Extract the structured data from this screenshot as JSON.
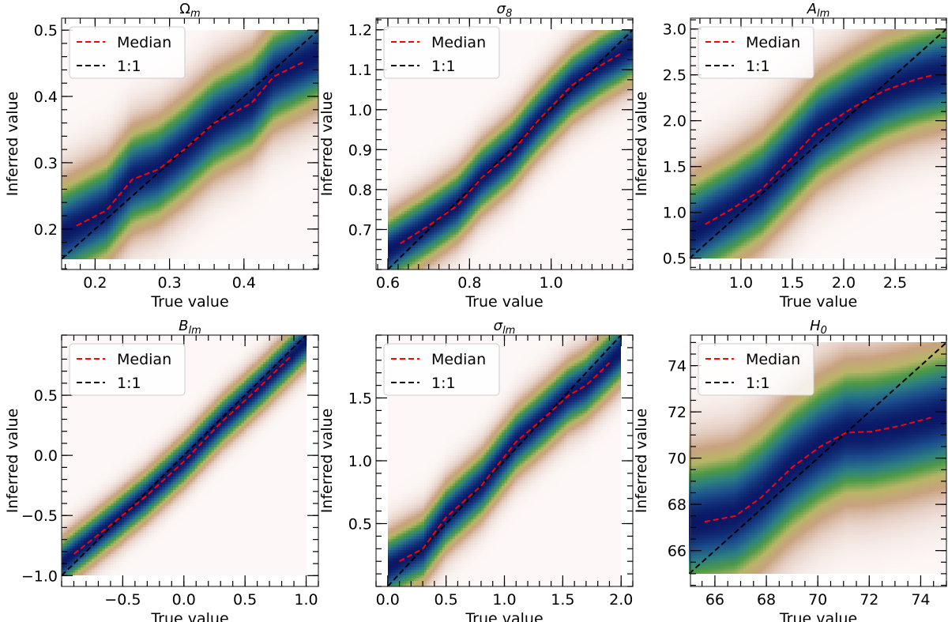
{
  "chart_data": [
    {
      "type": "heatmap",
      "title": {
        "main": "Ω",
        "sub": "m",
        "italic": false
      },
      "xlabel": "True value",
      "ylabel": "Inferred value",
      "xlim": [
        0.155,
        0.5
      ],
      "ylim": [
        0.139,
        0.518
      ],
      "data_range": [
        0.155,
        0.5
      ],
      "xticks": [
        0.2,
        0.3,
        0.4
      ],
      "xtick_labels": [
        "0.2",
        "0.3",
        "0.4"
      ],
      "yticks": [
        0.2,
        0.3,
        0.4,
        0.5
      ],
      "ytick_labels": [
        "0.2",
        "0.3",
        "0.4",
        "0.5"
      ],
      "series": [
        {
          "name": "Median",
          "color": "#ff0000",
          "style": "dashed",
          "x": [
            0.175,
            0.215,
            0.25,
            0.285,
            0.32,
            0.36,
            0.41,
            0.44,
            0.48
          ],
          "y": [
            0.205,
            0.228,
            0.275,
            0.29,
            0.32,
            0.36,
            0.39,
            0.43,
            0.452
          ]
        },
        {
          "name": "1:1",
          "color": "#000000",
          "style": "dashed",
          "x": [
            0.155,
            0.5
          ],
          "y": [
            0.155,
            0.5
          ]
        }
      ]
    },
    {
      "type": "heatmap",
      "title": {
        "main": "σ",
        "sub": "8",
        "italic": true
      },
      "xlabel": "True value",
      "ylabel": "Inferred value",
      "xlim": [
        0.571,
        1.2
      ],
      "ylim": [
        0.6,
        1.229
      ],
      "data_range": [
        0.6,
        1.2
      ],
      "xticks": [
        0.6,
        0.8,
        1.0
      ],
      "xtick_labels": [
        "0.6",
        "0.8",
        "1.0"
      ],
      "yticks": [
        0.7,
        0.8,
        0.9,
        1.0,
        1.1,
        1.2
      ],
      "ytick_labels": [
        "0.7",
        "0.8",
        "0.9",
        "1.0",
        "1.1",
        "1.2"
      ],
      "series": [
        {
          "name": "Median",
          "color": "#ff0000",
          "style": "dashed",
          "x": [
            0.63,
            0.7,
            0.77,
            0.83,
            0.9,
            0.97,
            1.05,
            1.12,
            1.17
          ],
          "y": [
            0.665,
            0.71,
            0.76,
            0.83,
            0.89,
            0.975,
            1.06,
            1.11,
            1.14
          ]
        },
        {
          "name": "1:1",
          "color": "#000000",
          "style": "dashed",
          "x": [
            0.6,
            1.2
          ],
          "y": [
            0.6,
            1.2
          ]
        }
      ]
    },
    {
      "type": "heatmap",
      "title": {
        "main": "A",
        "sub": "lm",
        "italic": true
      },
      "xlabel": "True value",
      "ylabel": "Inferred value",
      "xlim": [
        0.508,
        3.0
      ],
      "ylim": [
        0.377,
        3.118
      ],
      "data_range": [
        0.5,
        3.0
      ],
      "xticks": [
        1.0,
        1.5,
        2.0,
        2.5
      ],
      "xtick_labels": [
        "1.0",
        "1.5",
        "2.0",
        "2.5"
      ],
      "yticks": [
        0.5,
        1.0,
        1.5,
        2.0,
        2.5,
        3.0
      ],
      "ytick_labels": [
        "0.5",
        "1.0",
        "1.5",
        "2.0",
        "2.5",
        "3.0"
      ],
      "series": [
        {
          "name": "Median",
          "color": "#ff0000",
          "style": "dashed",
          "x": [
            0.65,
            0.9,
            1.2,
            1.5,
            1.75,
            2.1,
            2.4,
            2.7,
            2.88
          ],
          "y": [
            0.87,
            1.03,
            1.25,
            1.6,
            1.9,
            2.15,
            2.33,
            2.45,
            2.5
          ]
        },
        {
          "name": "1:1",
          "color": "#000000",
          "style": "dashed",
          "x": [
            0.5,
            3.0
          ],
          "y": [
            0.5,
            3.0
          ]
        }
      ]
    },
    {
      "type": "heatmap",
      "title": {
        "main": "B",
        "sub": "lm",
        "italic": true
      },
      "xlabel": "True value",
      "ylabel": "Inferred value",
      "xlim": [
        -1.0,
        1.1
      ],
      "ylim": [
        -1.09,
        1.0
      ],
      "data_range": [
        -1.0,
        1.0
      ],
      "xticks": [
        -0.5,
        0.0,
        0.5,
        1.0
      ],
      "xtick_labels": [
        "−0.5",
        "0.0",
        "0.5",
        "1.0"
      ],
      "yticks": [
        -1.0,
        -0.5,
        0.0,
        0.5
      ],
      "ytick_labels": [
        "−1.0",
        "−0.5",
        "0.0",
        "0.5"
      ],
      "series": [
        {
          "name": "Median",
          "color": "#ff0000",
          "style": "dashed",
          "x": [
            -0.9,
            -0.6,
            -0.3,
            0.0,
            0.3,
            0.6,
            0.87
          ],
          "y": [
            -0.82,
            -0.58,
            -0.33,
            -0.05,
            0.27,
            0.55,
            0.82
          ]
        },
        {
          "name": "1:1",
          "color": "#000000",
          "style": "dashed",
          "x": [
            -1.0,
            1.0
          ],
          "y": [
            -1.0,
            1.0
          ]
        }
      ]
    },
    {
      "type": "heatmap",
      "title": {
        "main": "σ",
        "sub": "lm",
        "italic": true
      },
      "xlabel": "True value",
      "ylabel": "Inferred value",
      "xlim": [
        -0.1,
        2.1
      ],
      "ylim": [
        0.0,
        2.0
      ],
      "data_range": [
        0.0,
        2.0
      ],
      "xticks": [
        0.0,
        0.5,
        1.0,
        1.5,
        2.0
      ],
      "xtick_labels": [
        "0.0",
        "0.5",
        "1.0",
        "1.5",
        "2.0"
      ],
      "yticks": [
        0.5,
        1.0,
        1.5
      ],
      "ytick_labels": [
        "0.5",
        "1.0",
        "1.5"
      ],
      "series": [
        {
          "name": "Median",
          "color": "#ff0000",
          "style": "dashed",
          "x": [
            0.1,
            0.3,
            0.5,
            0.8,
            1.1,
            1.35,
            1.55,
            1.7,
            1.9
          ],
          "y": [
            0.2,
            0.3,
            0.55,
            0.8,
            1.15,
            1.35,
            1.52,
            1.6,
            1.78
          ]
        },
        {
          "name": "1:1",
          "color": "#000000",
          "style": "dashed",
          "x": [
            0.0,
            2.0
          ],
          "y": [
            0.0,
            2.0
          ]
        }
      ]
    },
    {
      "type": "heatmap",
      "title": {
        "main": "H",
        "sub": "0",
        "italic": true
      },
      "xlabel": "True value",
      "ylabel": "Inferred value",
      "xlim": [
        65.05,
        75.0
      ],
      "ylim": [
        64.45,
        75.32
      ],
      "data_range": [
        65.0,
        75.0
      ],
      "xticks": [
        66,
        68,
        70,
        72,
        74
      ],
      "xtick_labels": [
        "66",
        "68",
        "70",
        "72",
        "74"
      ],
      "yticks": [
        66,
        68,
        70,
        72,
        74
      ],
      "ytick_labels": [
        "66",
        "68",
        "70",
        "72",
        "74"
      ],
      "series": [
        {
          "name": "Median",
          "color": "#ff0000",
          "style": "dashed",
          "x": [
            65.6,
            66.8,
            67.8,
            69.0,
            70.1,
            71.1,
            72.1,
            73.2,
            74.4
          ],
          "y": [
            67.25,
            67.5,
            68.3,
            69.6,
            70.5,
            71.1,
            71.15,
            71.4,
            71.75
          ]
        },
        {
          "name": "1:1",
          "color": "#000000",
          "style": "dashed",
          "x": [
            65.0,
            75.0
          ],
          "y": [
            65.0,
            75.0
          ]
        }
      ]
    }
  ],
  "legend": {
    "position": "top-left",
    "entries": [
      "Median",
      "1:1"
    ]
  },
  "colormap": [
    "#fdf8f7",
    "#e6d0c6",
    "#c8a27f",
    "#b8b566",
    "#4e9a46",
    "#2c7e83",
    "#1b4e8c",
    "#0a1766"
  ],
  "grid": false
}
